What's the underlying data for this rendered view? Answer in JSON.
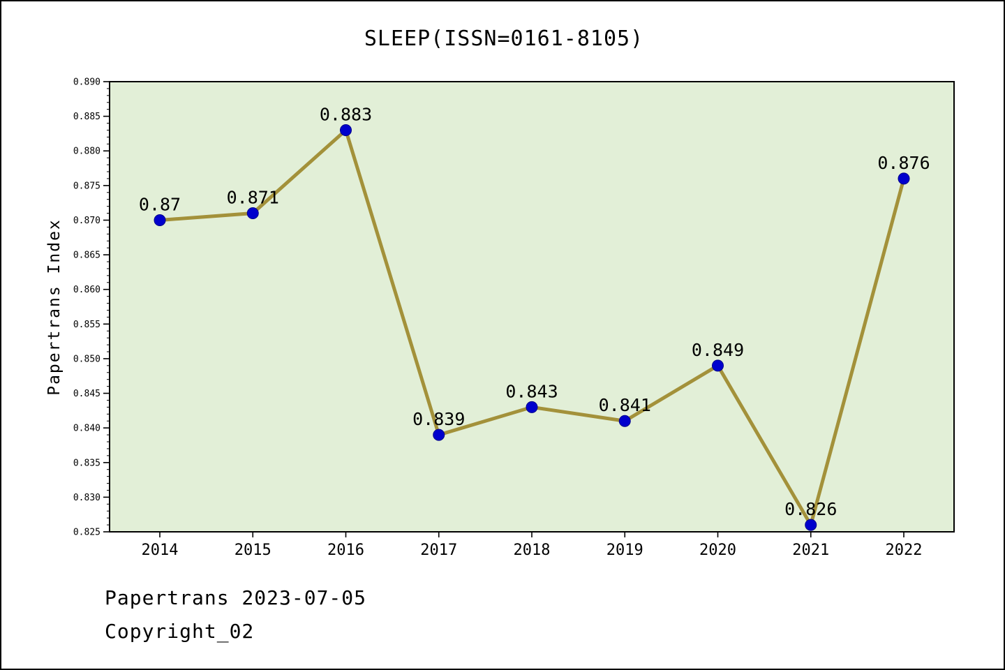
{
  "chart_data": {
    "type": "line",
    "title": "SLEEP(ISSN=0161-8105)",
    "ylabel": "Papertrans Index",
    "xlabel": "",
    "x": [
      2014,
      2015,
      2016,
      2017,
      2018,
      2019,
      2020,
      2021,
      2022
    ],
    "series": [
      {
        "name": "Papertrans Index",
        "values": [
          0.87,
          0.871,
          0.883,
          0.839,
          0.843,
          0.841,
          0.849,
          0.826,
          0.876
        ]
      }
    ],
    "point_labels": [
      "0.87",
      "0.871",
      "0.883",
      "0.839",
      "0.843",
      "0.841",
      "0.849",
      "0.826",
      "0.876"
    ],
    "ylim": [
      0.825,
      0.89
    ],
    "ytick_step": 0.005,
    "ytick_minor_step": 0.001,
    "grid": "off",
    "legend": "none",
    "colors": {
      "line": "#a3913a",
      "marker": "#0000cd",
      "marker_edge": "#00008b",
      "plot_bg": "#e2efd7",
      "axis": "#000000"
    }
  },
  "footer": {
    "line1": "Papertrans 2023-07-05",
    "line2": "Copyright_02"
  }
}
